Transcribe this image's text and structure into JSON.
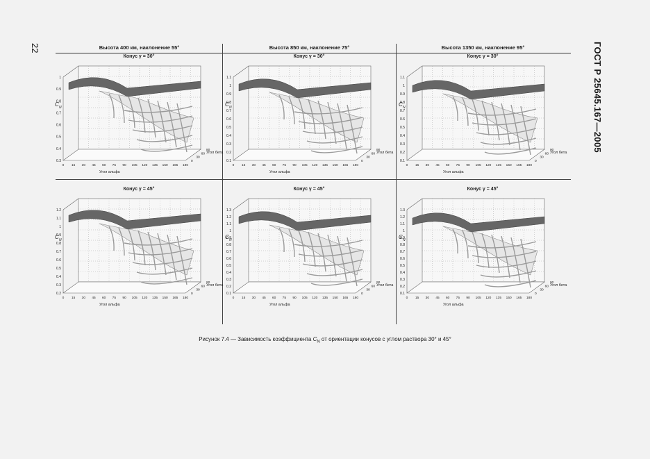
{
  "page_number": "22",
  "document_code": "ГОСТ Р 25645.167—2005",
  "columns": [
    "Высота 400 км, наклонение 55°",
    "Высота 850 км, наклонение 75°",
    "Высота 1350 км, наклонение 95°"
  ],
  "axis": {
    "y_label": "C",
    "y_sub": "N",
    "alpha_label": "Угол альфа",
    "beta_label": "Угол бета"
  },
  "alpha_ticks": [
    "0",
    "15",
    "30",
    "45",
    "60",
    "75",
    "90",
    "105",
    "120",
    "135",
    "150",
    "165",
    "180"
  ],
  "beta_ticks": [
    "0",
    "30",
    "60",
    "90"
  ],
  "panels": [
    {
      "title": "Конус γ = 30°",
      "y_ticks": [
        "1",
        "0.9",
        "0.8",
        "0.7",
        "0.6",
        "0.5",
        "0.4",
        "0.3"
      ]
    },
    {
      "title": "Конус γ = 30°",
      "y_ticks": [
        "1.1",
        "1",
        "0.9",
        "0.8",
        "0.7",
        "0.6",
        "0.5",
        "0.4",
        "0.3",
        "0.2",
        "0.1"
      ]
    },
    {
      "title": "Конус γ = 30°",
      "y_ticks": [
        "1.1",
        "1",
        "0.9",
        "0.8",
        "0.7",
        "0.6",
        "0.5",
        "0.4",
        "0.3",
        "0.2",
        "0.1"
      ]
    },
    {
      "title": "Конус γ = 45°",
      "y_ticks": [
        "1.2",
        "1.1",
        "1",
        "0.9",
        "0.8",
        "0.7",
        "0.6",
        "0.5",
        "0.4",
        "0.3",
        "0.2"
      ]
    },
    {
      "title": "Конус γ = 45°",
      "y_ticks": [
        "1.3",
        "1.2",
        "1.1",
        "1",
        "0.9",
        "0.8",
        "0.7",
        "0.6",
        "0.5",
        "0.4",
        "0.3",
        "0.2",
        "0.1"
      ]
    },
    {
      "title": "Конус γ = 45°",
      "y_ticks": [
        "1.3",
        "1.2",
        "1.1",
        "1",
        "0.9",
        "0.8",
        "0.7",
        "0.6",
        "0.5",
        "0.4",
        "0.3",
        "0.2",
        "0.1"
      ]
    }
  ],
  "caption": {
    "before": "Рисунок 7.4 — Зависимость коэффициента ",
    "sym": "C",
    "sub": "N",
    "after": " от ориентации  конусов с углом раствора 30° и 45°"
  }
}
